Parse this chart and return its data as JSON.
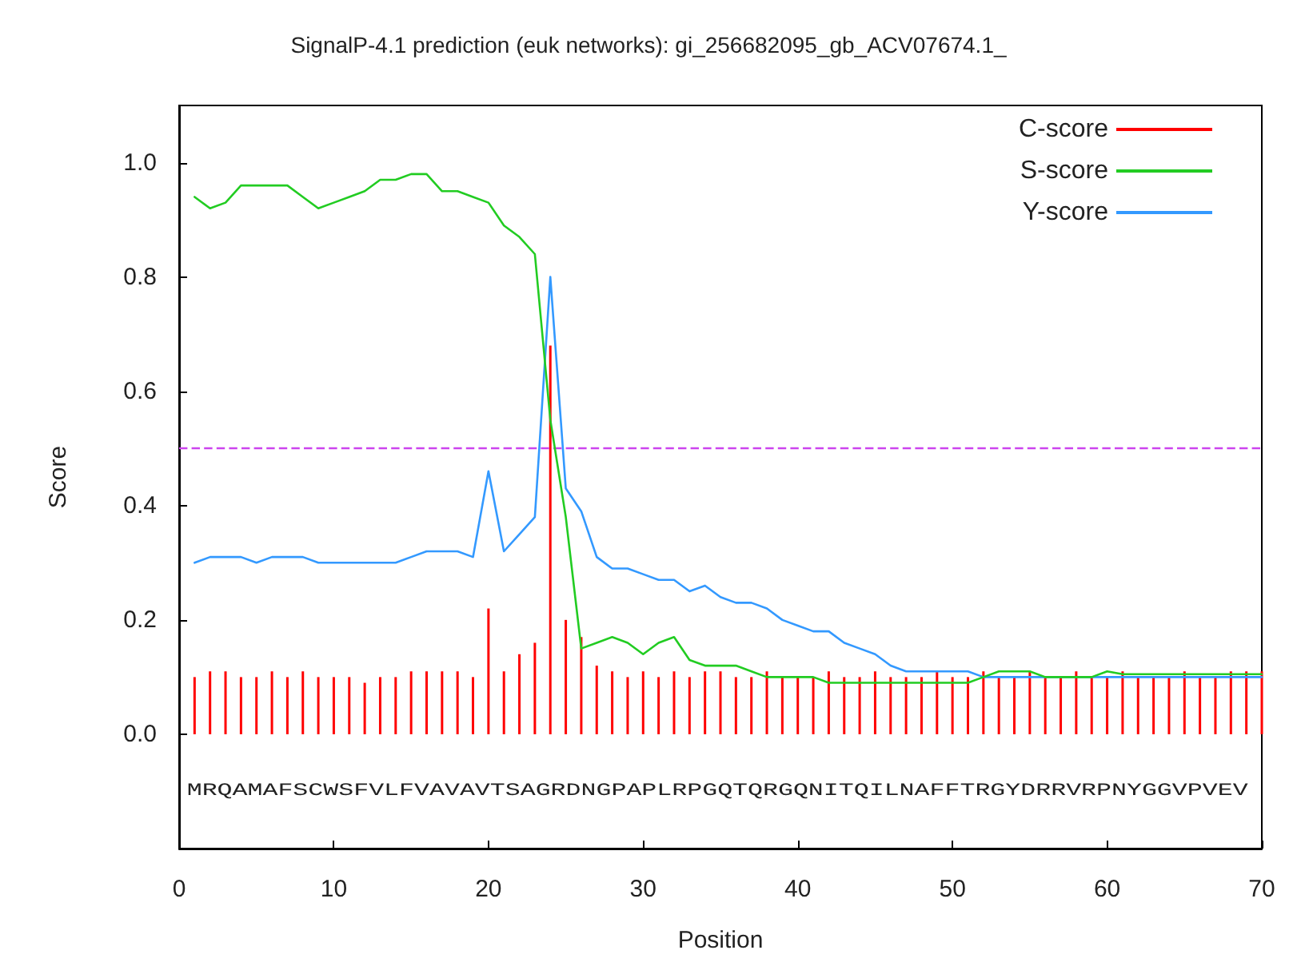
{
  "chart_data": {
    "type": "line",
    "title": "SignalP-4.1 prediction (euk networks): gi_256682095_gb_ACV07674.1_",
    "xlabel": "Position",
    "ylabel": "Score",
    "x": [
      1,
      2,
      3,
      4,
      5,
      6,
      7,
      8,
      9,
      10,
      11,
      12,
      13,
      14,
      15,
      16,
      17,
      18,
      19,
      20,
      21,
      22,
      23,
      24,
      25,
      26,
      27,
      28,
      29,
      30,
      31,
      32,
      33,
      34,
      35,
      36,
      37,
      38,
      39,
      40,
      41,
      42,
      43,
      44,
      45,
      46,
      47,
      48,
      49,
      50,
      51,
      52,
      53,
      54,
      55,
      56,
      57,
      58,
      59,
      60,
      61,
      62,
      63,
      64,
      65,
      66,
      67,
      68,
      69,
      70
    ],
    "series": [
      {
        "name": "C-score",
        "type": "bar",
        "color": "#ff0000",
        "values": [
          0.1,
          0.11,
          0.11,
          0.1,
          0.1,
          0.11,
          0.1,
          0.11,
          0.1,
          0.1,
          0.1,
          0.09,
          0.1,
          0.1,
          0.11,
          0.11,
          0.11,
          0.11,
          0.1,
          0.22,
          0.11,
          0.14,
          0.16,
          0.68,
          0.2,
          0.17,
          0.12,
          0.11,
          0.1,
          0.11,
          0.1,
          0.11,
          0.1,
          0.11,
          0.11,
          0.1,
          0.1,
          0.11,
          0.1,
          0.1,
          0.1,
          0.11,
          0.1,
          0.1,
          0.11,
          0.1,
          0.1,
          0.1,
          0.11,
          0.1,
          0.1,
          0.11,
          0.1,
          0.1,
          0.11,
          0.1,
          0.1,
          0.11,
          0.1,
          0.1,
          0.11,
          0.1,
          0.1,
          0.1,
          0.11,
          0.1,
          0.1,
          0.11,
          0.11,
          0.11
        ]
      },
      {
        "name": "S-score",
        "color": "#22cc22",
        "values": [
          0.94,
          0.92,
          0.93,
          0.96,
          0.96,
          0.96,
          0.96,
          0.94,
          0.92,
          0.93,
          0.94,
          0.95,
          0.97,
          0.97,
          0.98,
          0.98,
          0.95,
          0.95,
          0.94,
          0.93,
          0.89,
          0.87,
          0.84,
          0.55,
          0.38,
          0.15,
          0.16,
          0.17,
          0.16,
          0.14,
          0.16,
          0.17,
          0.13,
          0.12,
          0.12,
          0.12,
          0.11,
          0.1,
          0.1,
          0.1,
          0.1,
          0.09,
          0.09,
          0.09,
          0.09,
          0.09,
          0.09,
          0.09,
          0.09,
          0.09,
          0.09,
          0.1,
          0.11,
          0.11,
          0.11,
          0.1,
          0.1,
          0.1,
          0.1,
          0.11,
          0.105,
          0.105,
          0.105,
          0.105,
          0.105,
          0.105,
          0.105,
          0.105,
          0.105,
          0.105
        ]
      },
      {
        "name": "Y-score",
        "color": "#3399ff",
        "values": [
          0.3,
          0.31,
          0.31,
          0.31,
          0.3,
          0.31,
          0.31,
          0.31,
          0.3,
          0.3,
          0.3,
          0.3,
          0.3,
          0.3,
          0.31,
          0.32,
          0.32,
          0.32,
          0.31,
          0.46,
          0.32,
          0.35,
          0.38,
          0.8,
          0.43,
          0.39,
          0.31,
          0.29,
          0.29,
          0.28,
          0.27,
          0.27,
          0.25,
          0.26,
          0.24,
          0.23,
          0.23,
          0.22,
          0.2,
          0.19,
          0.18,
          0.18,
          0.16,
          0.15,
          0.14,
          0.12,
          0.11,
          0.11,
          0.11,
          0.11,
          0.11,
          0.1,
          0.1,
          0.1,
          0.1,
          0.1,
          0.1,
          0.1,
          0.1,
          0.1,
          0.1,
          0.1,
          0.1,
          0.1,
          0.1,
          0.1,
          0.1,
          0.1,
          0.1,
          0.1
        ]
      }
    ],
    "xlim": [
      0,
      70
    ],
    "xticks": [
      0,
      10,
      20,
      30,
      40,
      50,
      60,
      70
    ],
    "ylim": [
      -0.2,
      1.1
    ],
    "yticks": [
      {
        "value": 0,
        "label": "0.0"
      },
      0.2,
      0.4,
      0.6,
      0.8,
      {
        "value": 1,
        "label": "1.0"
      }
    ],
    "ref_lines": [
      {
        "axis": "y",
        "value": 0.5,
        "color": "#cc44ee",
        "line_style": "dashed"
      }
    ],
    "legend": "top right",
    "marker": "none",
    "line_style": "solid",
    "annotations": [
      "MRQAMAFSCWSFVLFVAVAVTSAGRDNGPAPLRPGQTQRGQNITQILNAFFTRGYDRRVRPNYGGVPVEV"
    ]
  }
}
